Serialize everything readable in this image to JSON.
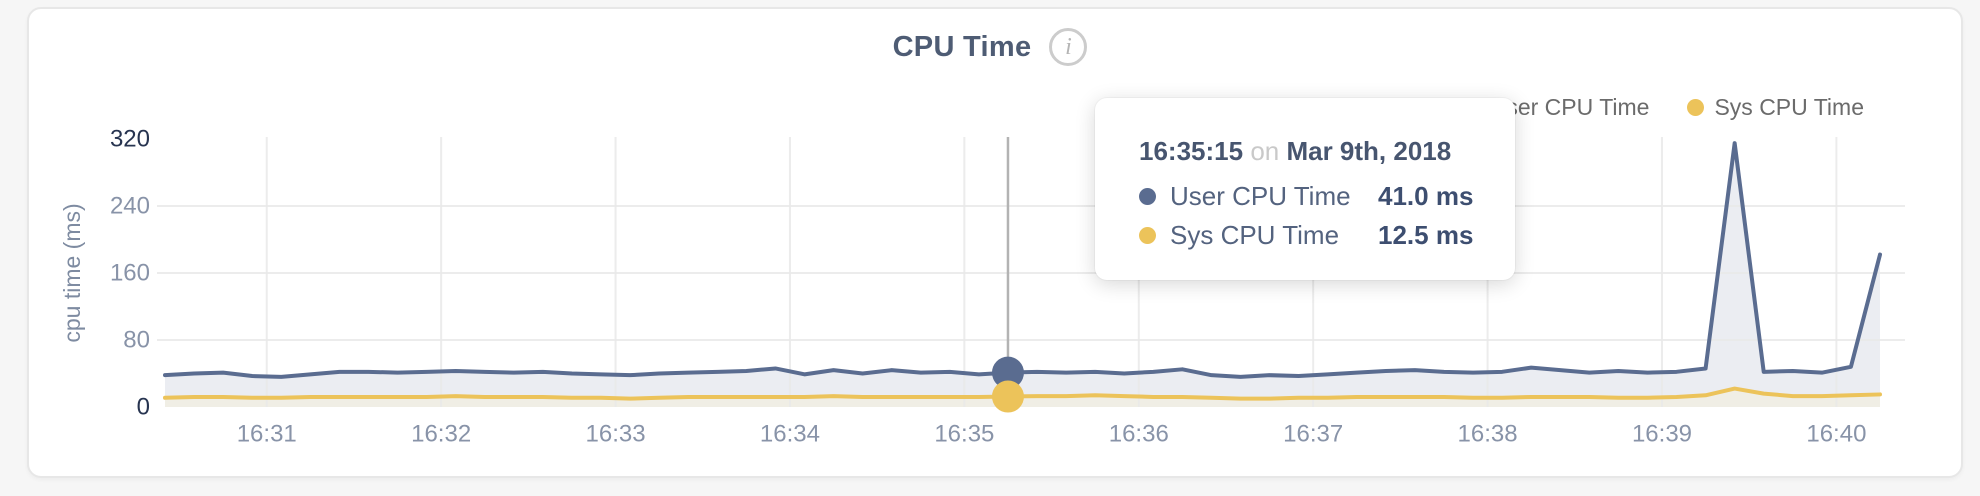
{
  "page": {
    "background": "#f6f6f6"
  },
  "card": {
    "title": "CPU Time",
    "info_icon_glyph": "i"
  },
  "legend": {
    "items": [
      {
        "label": "User CPU Time",
        "color": "#5a6c90"
      },
      {
        "label": "Sys CPU Time",
        "color": "#ecc35a"
      }
    ]
  },
  "tooltip": {
    "time": "16:35:15",
    "connector": "on",
    "date": "Mar 9th, 2018",
    "rows": [
      {
        "label": "User CPU Time",
        "value": "41.0 ms",
        "color": "#5a6c90"
      },
      {
        "label": "Sys CPU Time",
        "value": "12.5 ms",
        "color": "#ecc35a"
      }
    ]
  },
  "chart_data": {
    "type": "area",
    "title": "CPU Time",
    "xlabel": "",
    "ylabel": "cpu time (ms)",
    "ylim": [
      0,
      320
    ],
    "grid": true,
    "legend_position": "top-right",
    "y_ticks": [
      {
        "value": 0,
        "label": "0",
        "emphasis": true
      },
      {
        "value": 80,
        "label": "80",
        "emphasis": false
      },
      {
        "value": 160,
        "label": "160",
        "emphasis": false
      },
      {
        "value": 240,
        "label": "240",
        "emphasis": false
      },
      {
        "value": 320,
        "label": "320",
        "emphasis": true
      }
    ],
    "x_ticks": [
      "16:31",
      "16:32",
      "16:33",
      "16:34",
      "16:35",
      "16:36",
      "16:37",
      "16:38",
      "16:39",
      "16:40"
    ],
    "x_axis_start": "16:30:25",
    "x_axis_end": "16:40:15",
    "x_times": [
      "16:30:25",
      "16:30:35",
      "16:30:45",
      "16:30:55",
      "16:31:05",
      "16:31:15",
      "16:31:25",
      "16:31:35",
      "16:31:45",
      "16:31:55",
      "16:32:05",
      "16:32:15",
      "16:32:25",
      "16:32:35",
      "16:32:45",
      "16:32:55",
      "16:33:05",
      "16:33:15",
      "16:33:25",
      "16:33:35",
      "16:33:45",
      "16:33:55",
      "16:34:05",
      "16:34:15",
      "16:34:25",
      "16:34:35",
      "16:34:45",
      "16:34:55",
      "16:35:05",
      "16:35:15",
      "16:35:25",
      "16:35:35",
      "16:35:45",
      "16:35:55",
      "16:36:05",
      "16:36:15",
      "16:36:25",
      "16:36:35",
      "16:36:45",
      "16:36:55",
      "16:37:05",
      "16:37:15",
      "16:37:25",
      "16:37:35",
      "16:37:45",
      "16:37:55",
      "16:38:05",
      "16:38:15",
      "16:38:25",
      "16:38:35",
      "16:38:45",
      "16:38:55",
      "16:39:05",
      "16:39:15",
      "16:39:25",
      "16:39:35",
      "16:39:45",
      "16:39:55",
      "16:40:05",
      "16:40:15"
    ],
    "series": [
      {
        "name": "User CPU Time",
        "color": "#5a6c90",
        "fill": "#e9ecf1",
        "values": [
          38,
          40,
          41,
          37,
          36,
          39,
          42,
          42,
          41,
          42,
          43,
          42,
          41,
          42,
          40,
          39,
          38,
          40,
          41,
          42,
          43,
          46,
          39,
          44,
          40,
          44,
          41,
          42,
          39,
          41,
          42,
          41,
          42,
          40,
          42,
          45,
          38,
          36,
          38,
          37,
          39,
          41,
          43,
          44,
          42,
          41,
          42,
          47,
          44,
          41,
          43,
          41,
          42,
          46,
          315,
          42,
          43,
          41,
          48,
          182
        ]
      },
      {
        "name": "Sys CPU Time",
        "color": "#ecc35a",
        "fill": "#f0eee4",
        "values": [
          11,
          12,
          12,
          11,
          11,
          12,
          12,
          12,
          12,
          12,
          13,
          12,
          12,
          12,
          11,
          11,
          10,
          11,
          12,
          12,
          12,
          12,
          12,
          13,
          12,
          12,
          12,
          12,
          12,
          12.5,
          13,
          13,
          14,
          13,
          12,
          12,
          11,
          10,
          10,
          11,
          11,
          12,
          12,
          12,
          12,
          11,
          11,
          12,
          12,
          12,
          11,
          11,
          12,
          14,
          22,
          16,
          13,
          13,
          14,
          15
        ]
      }
    ],
    "highlight": {
      "time": "16:35:15",
      "date": "Mar 9th, 2018",
      "values": [
        41.0,
        12.5
      ]
    }
  },
  "colors": {
    "grid": "#e9e9e9",
    "crosshair": "#b3b3b3",
    "axis_label": "#8893a8",
    "axis_label_dark": "#273450",
    "y_axis_title": "#7e8ba1"
  }
}
